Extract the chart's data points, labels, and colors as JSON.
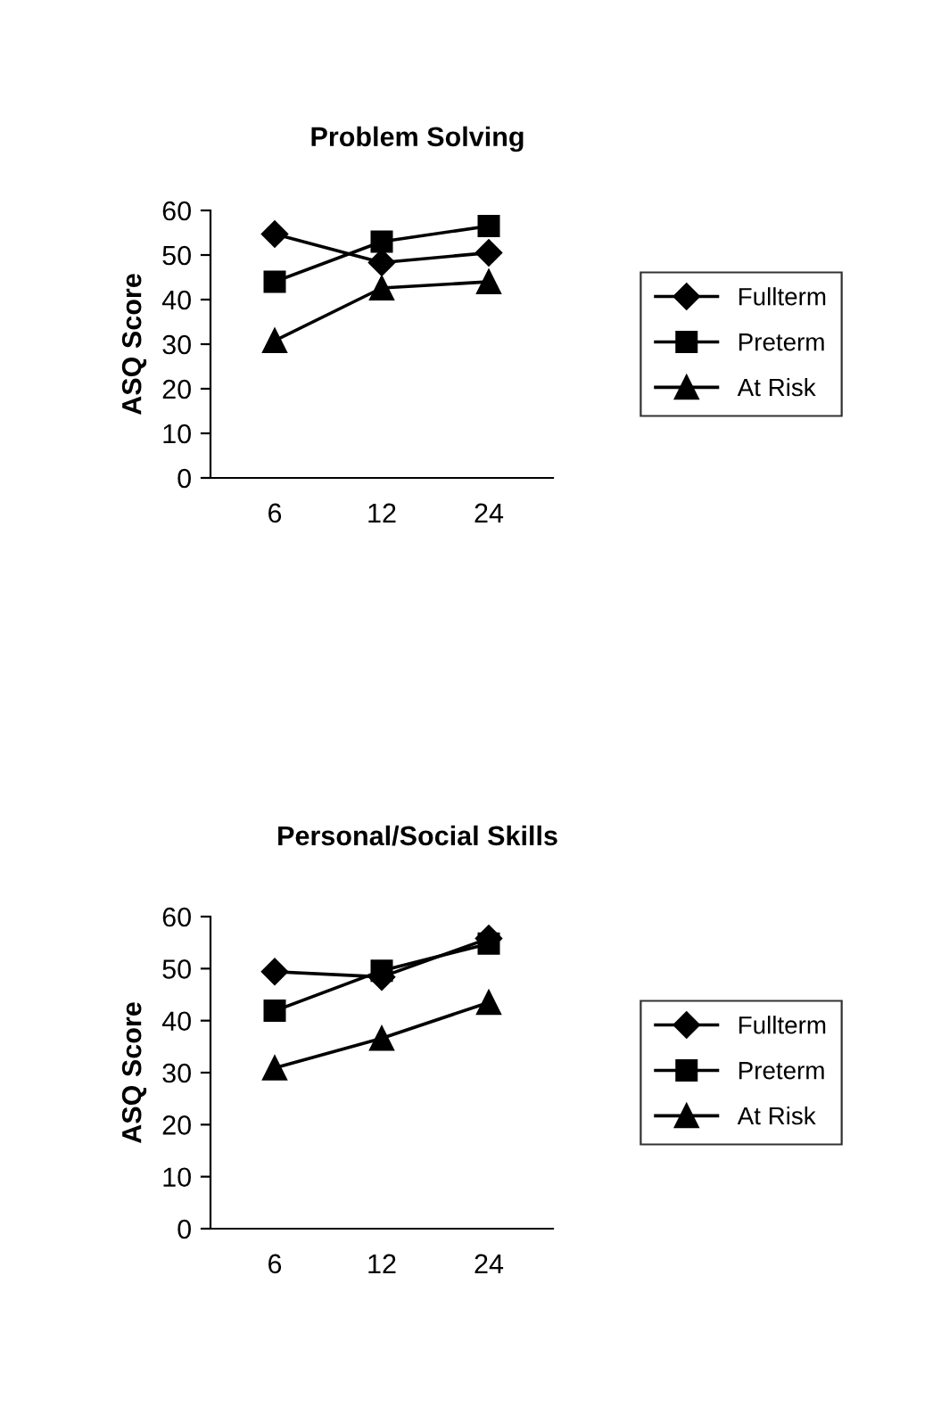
{
  "chart_data": [
    {
      "type": "line",
      "title": "Problem Solving",
      "ylabel": "ASQ Score",
      "categories": [
        "6",
        "12",
        "24"
      ],
      "ylim": [
        0,
        60
      ],
      "yticks": [
        0,
        10,
        20,
        30,
        40,
        50,
        60
      ],
      "grid": false,
      "legend": "right",
      "series": [
        {
          "name": "Fullterm",
          "color": "#000000",
          "marker": "diamond",
          "values": [
            54.7,
            48.3,
            50.5
          ]
        },
        {
          "name": "Preterm",
          "color": "#000000",
          "marker": "square",
          "values": [
            44,
            53,
            56.5
          ]
        },
        {
          "name": "At Risk",
          "color": "#000000",
          "marker": "triangle",
          "values": [
            30.8,
            42.6,
            44
          ]
        }
      ]
    },
    {
      "type": "line",
      "title": "Personal/Social Skills",
      "ylabel": "ASQ Score",
      "categories": [
        "6",
        "12",
        "24"
      ],
      "ylim": [
        0,
        60
      ],
      "yticks": [
        0,
        10,
        20,
        30,
        40,
        50,
        60
      ],
      "grid": false,
      "legend": "right",
      "series": [
        {
          "name": "Fullterm",
          "color": "#000000",
          "marker": "diamond",
          "values": [
            49.4,
            48.4,
            55.8
          ]
        },
        {
          "name": "Preterm",
          "color": "#000000",
          "marker": "square",
          "values": [
            41.9,
            49.6,
            54.8
          ]
        },
        {
          "name": "At Risk",
          "color": "#000000",
          "marker": "triangle",
          "values": [
            30.9,
            36.6,
            43.5
          ]
        }
      ]
    }
  ]
}
